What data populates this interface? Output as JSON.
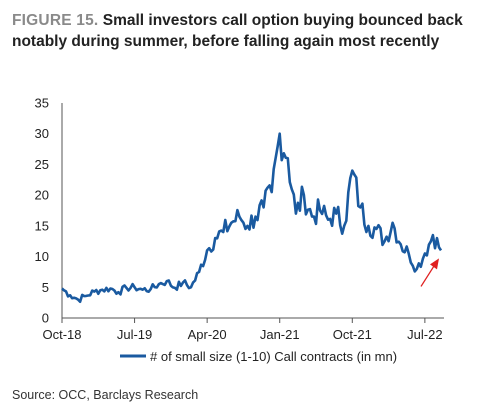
{
  "figure_label": "FIGURE 15.",
  "title": "Small investors call option buying bounced back notably during summer, before falling again most recently",
  "source": "Source: OCC, Barclays Research",
  "colors": {
    "series": "#1a5aa0",
    "arrow": "#e02020",
    "axis": "#555555"
  },
  "chart_data": {
    "type": "line",
    "title": "Small investors call option buying bounced back notably during summer, before falling again most recently",
    "xlabel": "",
    "ylabel": "",
    "ylim": [
      0,
      35
    ],
    "yticks": [
      "0",
      "5",
      "10",
      "15",
      "20",
      "25",
      "30",
      "35"
    ],
    "xticks": [
      "Oct-18",
      "Jul-19",
      "Apr-20",
      "Jan-21",
      "Oct-21",
      "Jul-22"
    ],
    "legend": "bottom",
    "grid": false,
    "series": [
      {
        "name": "# of small size (1-10) Call contracts (in mn)",
        "x": [
          "Oct-18",
          "Nov-18",
          "Dec-18",
          "Jan-19",
          "Feb-19",
          "Mar-19",
          "Apr-19",
          "May-19",
          "Jun-19",
          "Jul-19",
          "Aug-19",
          "Sep-19",
          "Oct-19",
          "Nov-19",
          "Dec-19",
          "Jan-20",
          "Feb-20",
          "Mar-20",
          "Apr-20",
          "May-20",
          "Jun-20",
          "Jul-20",
          "Aug-20",
          "Sep-20",
          "Oct-20",
          "Nov-20",
          "Dec-20",
          "Jan-21",
          "Feb-21",
          "Mar-21",
          "Apr-21",
          "May-21",
          "Jun-21",
          "Jul-21",
          "Aug-21",
          "Sep-21",
          "Oct-21",
          "Nov-21",
          "Dec-21",
          "Jan-22",
          "Feb-22",
          "Mar-22",
          "Apr-22",
          "May-22",
          "Jun-22",
          "Jul-22",
          "Aug-22",
          "Sep-22"
        ],
        "values": [
          4.8,
          3.7,
          3.0,
          3.6,
          4.3,
          4.6,
          4.8,
          4.2,
          4.9,
          5.0,
          4.6,
          4.7,
          5.5,
          6.0,
          4.9,
          5.8,
          5.0,
          7.5,
          11.0,
          13.0,
          14.0,
          15.5,
          16.5,
          15.0,
          16.5,
          18.0,
          20.5,
          30.0,
          26.0,
          17.0,
          20.0,
          16.5,
          17.5,
          16.0,
          17.0,
          15.0,
          24.0,
          18.0,
          15.0,
          14.5,
          12.5,
          15.5,
          12.0,
          10.5,
          8.0,
          10.5,
          13.5,
          11.0
        ]
      }
    ],
    "annotations": [
      {
        "type": "arrow",
        "target": "Sep-22"
      }
    ]
  }
}
